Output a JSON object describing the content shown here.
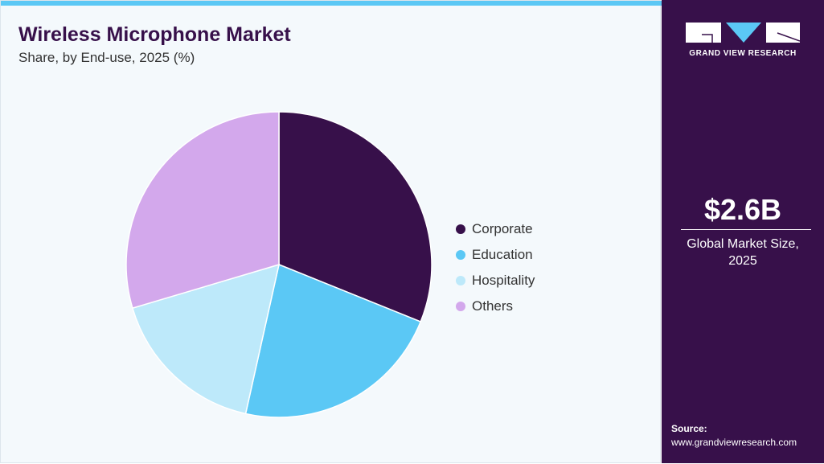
{
  "title": "Wireless Microphone Market",
  "subtitle": "Share, by End-use, 2025 (%)",
  "chart_data": {
    "type": "pie",
    "title": "Wireless Microphone Market",
    "subtitle": "Share, by End-use, 2025 (%)",
    "categories": [
      "Corporate",
      "Education",
      "Hospitality",
      "Others"
    ],
    "values": [
      31.1,
      22.4,
      16.9,
      29.6
    ],
    "colors": [
      "#37104a",
      "#5bc8f5",
      "#bde9fa",
      "#d3a8ec"
    ],
    "start": "top, clockwise",
    "legend_position": "right"
  },
  "brand": {
    "name": "GRAND VIEW RESEARCH"
  },
  "market": {
    "value": "$2.6B",
    "label_line1": "Global Market Size,",
    "label_line2": "2025"
  },
  "source": {
    "label": "Source:",
    "url": "www.grandviewresearch.com"
  }
}
